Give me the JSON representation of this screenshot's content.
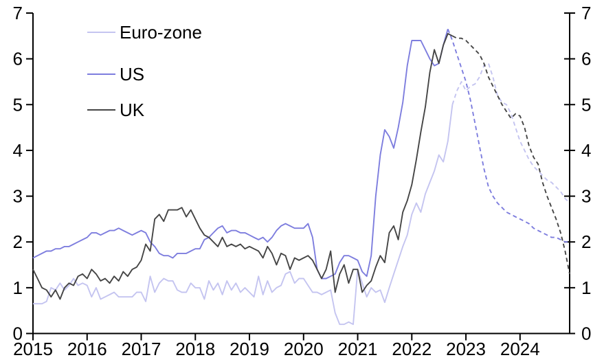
{
  "chart_data": {
    "type": "line",
    "title": "",
    "xlabel": "",
    "ylabel": "",
    "x_start": "2015-01",
    "x_end": "2024-12",
    "frequency": "monthly",
    "points_per_series": 120,
    "x_tick_labels": [
      "2015",
      "2016",
      "2017",
      "2018",
      "2019",
      "2020",
      "2021",
      "2022",
      "2023",
      "2024"
    ],
    "y_ticks": [
      0,
      1,
      2,
      3,
      4,
      5,
      6,
      7
    ],
    "ylim": [
      0,
      7
    ],
    "y_axis_both_sides": true,
    "grid": false,
    "legend_position": "top-left",
    "style_note": "values after solid_until_index are drawn as a dashed line (forecast)",
    "axis_color": "#000000",
    "series": [
      {
        "name": "Euro-zone",
        "color": "#c4c4f0",
        "solid_until_index": 93,
        "values": [
          0.65,
          0.65,
          0.65,
          0.7,
          1.0,
          0.95,
          1.1,
          0.95,
          1.05,
          1.2,
          1.05,
          1.1,
          1.05,
          0.8,
          1.0,
          0.75,
          0.8,
          0.85,
          0.9,
          0.8,
          0.8,
          0.8,
          0.8,
          0.9,
          0.9,
          0.7,
          1.25,
          0.9,
          1.1,
          1.2,
          1.15,
          1.15,
          0.95,
          0.9,
          0.9,
          1.1,
          1.0,
          1.0,
          0.75,
          1.15,
          0.95,
          1.1,
          0.85,
          1.15,
          0.95,
          1.1,
          0.9,
          1.0,
          0.9,
          0.8,
          1.25,
          0.85,
          1.15,
          0.9,
          1.0,
          1.05,
          1.3,
          1.35,
          1.1,
          1.2,
          1.2,
          1.05,
          0.9,
          0.9,
          0.85,
          0.9,
          0.95,
          0.45,
          0.2,
          0.2,
          0.25,
          0.2,
          1.4,
          1.1,
          0.8,
          1.0,
          0.9,
          0.95,
          0.68,
          1.0,
          1.3,
          1.6,
          1.9,
          2.15,
          2.6,
          2.85,
          2.65,
          3.05,
          3.3,
          3.55,
          3.9,
          3.75,
          4.2,
          5.0,
          5.3,
          5.5,
          5.3,
          5.4,
          5.45,
          5.6,
          5.85,
          5.9,
          5.6,
          5.2,
          5.05,
          5.0,
          4.8,
          4.5,
          4.2,
          4.0,
          3.8,
          3.65,
          3.55,
          3.45,
          3.35,
          3.3,
          3.2,
          3.1,
          2.95,
          2.85
        ]
      },
      {
        "name": "US",
        "color": "#7d7dde",
        "solid_until_index": 92,
        "values": [
          1.65,
          1.7,
          1.75,
          1.8,
          1.8,
          1.85,
          1.85,
          1.9,
          1.9,
          1.95,
          2.0,
          2.05,
          2.1,
          2.2,
          2.2,
          2.15,
          2.2,
          2.25,
          2.25,
          2.3,
          2.25,
          2.2,
          2.15,
          2.2,
          2.25,
          2.2,
          2.0,
          1.9,
          1.75,
          1.7,
          1.7,
          1.65,
          1.75,
          1.75,
          1.75,
          1.8,
          1.85,
          1.85,
          2.05,
          2.1,
          2.2,
          2.3,
          2.35,
          2.2,
          2.25,
          2.25,
          2.2,
          2.2,
          2.15,
          2.1,
          2.05,
          2.1,
          2.0,
          2.1,
          2.25,
          2.35,
          2.4,
          2.35,
          2.3,
          2.3,
          2.3,
          2.4,
          2.1,
          1.4,
          1.2,
          1.2,
          1.25,
          1.3,
          1.55,
          1.7,
          1.7,
          1.65,
          1.6,
          1.35,
          1.25,
          1.7,
          3.0,
          3.9,
          4.45,
          4.3,
          4.05,
          4.5,
          5.05,
          5.85,
          6.4,
          6.4,
          6.4,
          6.2,
          6.0,
          5.85,
          5.9,
          6.3,
          6.65,
          6.4,
          6.1,
          5.8,
          5.5,
          5.1,
          4.6,
          4.1,
          3.6,
          3.2,
          3.0,
          2.85,
          2.75,
          2.65,
          2.6,
          2.55,
          2.5,
          2.45,
          2.4,
          2.3,
          2.25,
          2.2,
          2.15,
          2.1,
          2.1,
          2.05,
          2.0,
          2.0
        ]
      },
      {
        "name": "UK",
        "color": "#454545",
        "solid_until_index": 93,
        "values": [
          1.4,
          1.2,
          1.0,
          0.95,
          0.8,
          0.95,
          0.75,
          1.0,
          1.1,
          1.05,
          1.25,
          1.3,
          1.2,
          1.4,
          1.3,
          1.15,
          1.2,
          1.1,
          1.25,
          1.15,
          1.35,
          1.25,
          1.4,
          1.45,
          1.6,
          1.95,
          1.8,
          2.5,
          2.6,
          2.45,
          2.7,
          2.7,
          2.7,
          2.75,
          2.55,
          2.7,
          2.5,
          2.3,
          2.15,
          2.1,
          2.0,
          1.9,
          2.1,
          1.9,
          1.95,
          1.9,
          1.95,
          1.85,
          1.9,
          1.85,
          1.8,
          1.65,
          1.9,
          1.75,
          1.5,
          1.75,
          1.7,
          1.4,
          1.65,
          1.6,
          1.65,
          1.7,
          1.6,
          1.4,
          1.2,
          1.4,
          1.8,
          0.9,
          1.3,
          1.5,
          1.1,
          1.4,
          1.4,
          0.9,
          1.05,
          1.15,
          1.45,
          1.7,
          1.55,
          2.2,
          2.35,
          2.05,
          2.65,
          2.9,
          3.25,
          3.8,
          4.4,
          4.95,
          5.7,
          6.2,
          5.9,
          6.3,
          6.55,
          6.5,
          6.45,
          6.45,
          6.4,
          6.3,
          6.2,
          6.1,
          5.9,
          5.6,
          5.4,
          5.2,
          5.0,
          4.85,
          4.7,
          4.8,
          4.75,
          4.5,
          4.1,
          3.85,
          3.7,
          3.3,
          3.0,
          2.75,
          2.5,
          2.2,
          1.8,
          1.3
        ]
      }
    ]
  }
}
